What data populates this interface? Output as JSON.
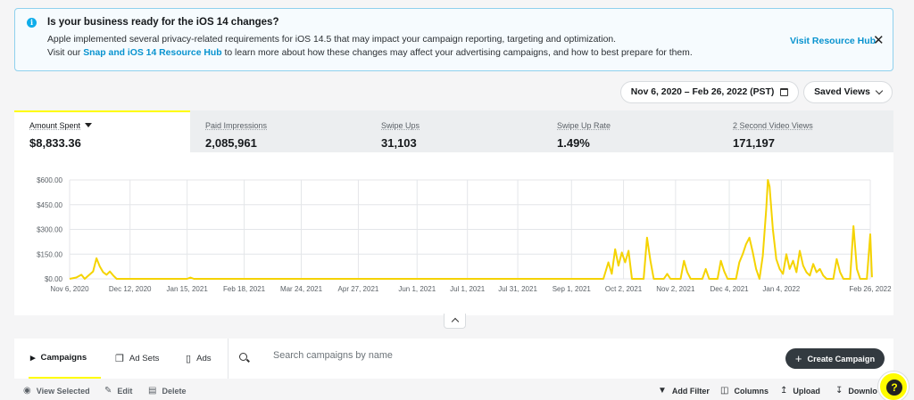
{
  "banner": {
    "title": "Is your business ready for the iOS 14 changes?",
    "line1": "Apple implemented several privacy-related requirements for iOS 14.5 that may impact your campaign reporting, targeting and optimization.",
    "line2_before": "Visit our",
    "line2_link": "Snap and iOS 14 Resource Hub",
    "line2_after": "to learn more about how these changes may affect your advertising campaigns, and how to best prepare for them.",
    "visit_link": "Visit Resource Hub",
    "close": "✕",
    "info_icon": "i"
  },
  "toolbar": {
    "date_range": "Nov 6, 2020 – Feb 26, 2022 (PST)",
    "saved_views": "Saved Views"
  },
  "metrics": [
    {
      "label": "Amount Spent",
      "value": "$8,833.36"
    },
    {
      "label": "Paid Impressions",
      "value": "2,085,961"
    },
    {
      "label": "Swipe Ups",
      "value": "31,103"
    },
    {
      "label": "Swipe Up Rate",
      "value": "1.49%"
    },
    {
      "label": "2 Second Video Views",
      "value": "171,197"
    }
  ],
  "chart_data": {
    "type": "line",
    "series": [
      {
        "name": "Amount Spent",
        "color": "#f5d300"
      }
    ],
    "ylim": [
      0,
      600
    ],
    "yticks": [
      "$0.00",
      "$150.00",
      "$300.00",
      "$450.00",
      "$600.00"
    ],
    "xticks": [
      "Nov 6, 2020",
      "Dec 12, 2020",
      "Jan 15, 2021",
      "Feb 18, 2021",
      "Mar 24, 2021",
      "Apr 27, 2021",
      "Jun 1, 2021",
      "Jul 1, 2021",
      "Jul 31, 2021",
      "Sep 1, 2021",
      "Oct 2, 2021",
      "Nov 2, 2021",
      "Dec 4, 2021",
      "Jan 4, 2022",
      "Feb 26, 2022"
    ],
    "points": [
      [
        "Nov 6, 2020",
        0
      ],
      [
        "Nov 10, 2020",
        8
      ],
      [
        "Nov 13, 2020",
        25
      ],
      [
        "Nov 15, 2020",
        0
      ],
      [
        "Nov 20, 2020",
        45
      ],
      [
        "Nov 22, 2020",
        125
      ],
      [
        "Nov 24, 2020",
        75
      ],
      [
        "Nov 26, 2020",
        40
      ],
      [
        "Nov 28, 2020",
        25
      ],
      [
        "Nov 30, 2020",
        45
      ],
      [
        "Dec 2, 2020",
        20
      ],
      [
        "Dec 4, 2020",
        0
      ],
      [
        "Jan 15, 2021",
        0
      ],
      [
        "Jan 17, 2021",
        8
      ],
      [
        "Jan 19, 2021",
        0
      ],
      [
        "Sep 20, 2021",
        0
      ],
      [
        "Sep 23, 2021",
        100
      ],
      [
        "Sep 25, 2021",
        30
      ],
      [
        "Sep 27, 2021",
        180
      ],
      [
        "Sep 29, 2021",
        80
      ],
      [
        "Oct 1, 2021",
        160
      ],
      [
        "Oct 3, 2021",
        100
      ],
      [
        "Oct 5, 2021",
        170
      ],
      [
        "Oct 7, 2021",
        0
      ],
      [
        "Oct 14, 2021",
        0
      ],
      [
        "Oct 16, 2021",
        250
      ],
      [
        "Oct 18, 2021",
        110
      ],
      [
        "Oct 20, 2021",
        0
      ],
      [
        "Oct 26, 2021",
        0
      ],
      [
        "Oct 28, 2021",
        30
      ],
      [
        "Oct 30, 2021",
        0
      ],
      [
        "Nov 5, 2021",
        0
      ],
      [
        "Nov 7, 2021",
        110
      ],
      [
        "Nov 9, 2021",
        40
      ],
      [
        "Nov 11, 2021",
        0
      ],
      [
        "Nov 18, 2021",
        0
      ],
      [
        "Nov 20, 2021",
        60
      ],
      [
        "Nov 22, 2021",
        0
      ],
      [
        "Nov 27, 2021",
        0
      ],
      [
        "Nov 29, 2021",
        110
      ],
      [
        "Dec 1, 2021",
        45
      ],
      [
        "Dec 3, 2021",
        0
      ],
      [
        "Dec 8, 2021",
        0
      ],
      [
        "Dec 10, 2021",
        100
      ],
      [
        "Dec 12, 2021",
        150
      ],
      [
        "Dec 14, 2021",
        210
      ],
      [
        "Dec 16, 2021",
        250
      ],
      [
        "Dec 18, 2021",
        160
      ],
      [
        "Dec 20, 2021",
        60
      ],
      [
        "Dec 22, 2021",
        0
      ],
      [
        "Dec 24, 2021",
        140
      ],
      [
        "Dec 26, 2021",
        420
      ],
      [
        "Dec 27, 2021",
        600
      ],
      [
        "Dec 28, 2021",
        560
      ],
      [
        "Dec 30, 2021",
        300
      ],
      [
        "Jan 1, 2022",
        120
      ],
      [
        "Jan 3, 2022",
        60
      ],
      [
        "Jan 5, 2022",
        30
      ],
      [
        "Jan 7, 2022",
        150
      ],
      [
        "Jan 9, 2022",
        60
      ],
      [
        "Jan 11, 2022",
        110
      ],
      [
        "Jan 13, 2022",
        40
      ],
      [
        "Jan 15, 2022",
        170
      ],
      [
        "Jan 17, 2022",
        80
      ],
      [
        "Jan 19, 2022",
        40
      ],
      [
        "Jan 21, 2022",
        20
      ],
      [
        "Jan 23, 2022",
        90
      ],
      [
        "Jan 25, 2022",
        40
      ],
      [
        "Jan 27, 2022",
        60
      ],
      [
        "Jan 29, 2022",
        20
      ],
      [
        "Jan 31, 2022",
        0
      ],
      [
        "Feb 4, 2022",
        0
      ],
      [
        "Feb 6, 2022",
        120
      ],
      [
        "Feb 8, 2022",
        40
      ],
      [
        "Feb 10, 2022",
        0
      ],
      [
        "Feb 14, 2022",
        0
      ],
      [
        "Feb 16, 2022",
        320
      ],
      [
        "Feb 18, 2022",
        60
      ],
      [
        "Feb 20, 2022",
        0
      ],
      [
        "Feb 24, 2022",
        0
      ],
      [
        "Feb 26, 2022",
        270
      ],
      [
        "Feb 27, 2022",
        10
      ]
    ]
  },
  "tabs": [
    {
      "label": "Campaigns",
      "icon": "megaphone-icon"
    },
    {
      "label": "Ad Sets",
      "icon": "ad-sets-icon"
    },
    {
      "label": "Ads",
      "icon": "ad-icon"
    }
  ],
  "search": {
    "placeholder": "Search campaigns by name"
  },
  "create_button": "Create Campaign",
  "actions": {
    "view_selected": "View Selected",
    "edit": "Edit",
    "delete": "Delete",
    "add_filter": "Add Filter",
    "columns": "Columns",
    "upload": "Upload",
    "download": "Downlo"
  },
  "help": "?"
}
